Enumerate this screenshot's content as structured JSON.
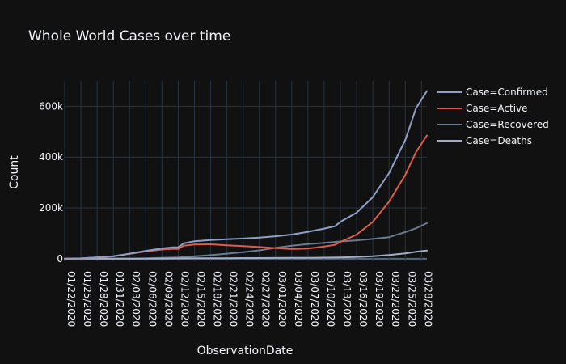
{
  "chart_data": {
    "type": "line",
    "title": "Whole World Cases over time",
    "xlabel": "ObservationDate",
    "ylabel": "Count",
    "ylim": [
      -10000,
      700000
    ],
    "xlim": [
      "01/22/2020",
      "03/29/2020"
    ],
    "grid": true,
    "legend_position": "top-right",
    "legend_group_title": "Case=",
    "y_ticks": [
      {
        "value": 0,
        "label": "0"
      },
      {
        "value": 200000,
        "label": "200k"
      },
      {
        "value": 400000,
        "label": "400k"
      },
      {
        "value": 600000,
        "label": "600k"
      }
    ],
    "x_ticks": [
      "01/22/2020",
      "01/25/2020",
      "01/28/2020",
      "01/31/2020",
      "02/03/2020",
      "02/06/2020",
      "02/09/2020",
      "02/12/2020",
      "02/15/2020",
      "02/18/2020",
      "02/21/2020",
      "02/24/2020",
      "02/27/2020",
      "03/01/2020",
      "03/04/2020",
      "03/07/2020",
      "03/10/2020",
      "03/13/2020",
      "03/16/2020",
      "03/19/2020",
      "03/22/2020",
      "03/25/2020",
      "03/28/2020"
    ],
    "series": [
      {
        "name": "Case=Confirmed",
        "color": "#8ea0c8",
        "points": [
          [
            "01/22/2020",
            555
          ],
          [
            "01/25/2020",
            1400
          ],
          [
            "01/28/2020",
            5600
          ],
          [
            "01/31/2020",
            9900
          ],
          [
            "02/03/2020",
            20000
          ],
          [
            "02/06/2020",
            31000
          ],
          [
            "02/09/2020",
            40500
          ],
          [
            "02/11/2020",
            45000
          ],
          [
            "02/12/2020",
            45200
          ],
          [
            "02/13/2020",
            60400
          ],
          [
            "02/15/2020",
            69000
          ],
          [
            "02/18/2020",
            73300
          ],
          [
            "02/21/2020",
            76800
          ],
          [
            "02/24/2020",
            79600
          ],
          [
            "02/27/2020",
            83000
          ],
          [
            "03/01/2020",
            88400
          ],
          [
            "03/04/2020",
            95100
          ],
          [
            "03/07/2020",
            105800
          ],
          [
            "03/10/2020",
            118600
          ],
          [
            "03/12/2020",
            128300
          ],
          [
            "03/13/2020",
            145200
          ],
          [
            "03/16/2020",
            181500
          ],
          [
            "03/19/2020",
            242700
          ],
          [
            "03/22/2020",
            337000
          ],
          [
            "03/25/2020",
            467600
          ],
          [
            "03/27/2020",
            593000
          ],
          [
            "03/29/2020",
            660000
          ]
        ]
      },
      {
        "name": "Case=Active",
        "color": "#e05b4b",
        "points": [
          [
            "01/22/2020",
            500
          ],
          [
            "01/25/2020",
            1300
          ],
          [
            "01/28/2020",
            5400
          ],
          [
            "01/31/2020",
            9300
          ],
          [
            "02/03/2020",
            19100
          ],
          [
            "02/06/2020",
            28800
          ],
          [
            "02/09/2020",
            36300
          ],
          [
            "02/11/2020",
            39000
          ],
          [
            "02/12/2020",
            38500
          ],
          [
            "02/13/2020",
            51000
          ],
          [
            "02/15/2020",
            56000
          ],
          [
            "02/18/2020",
            57000
          ],
          [
            "02/21/2020",
            53000
          ],
          [
            "02/24/2020",
            50000
          ],
          [
            "02/27/2020",
            46000
          ],
          [
            "03/01/2020",
            42000
          ],
          [
            "03/04/2020",
            38000
          ],
          [
            "03/07/2020",
            40000
          ],
          [
            "03/10/2020",
            48000
          ],
          [
            "03/12/2020",
            55000
          ],
          [
            "03/13/2020",
            66000
          ],
          [
            "03/16/2020",
            95000
          ],
          [
            "03/19/2020",
            145000
          ],
          [
            "03/22/2020",
            225000
          ],
          [
            "03/25/2020",
            330000
          ],
          [
            "03/27/2020",
            420000
          ],
          [
            "03/29/2020",
            485000
          ]
        ]
      },
      {
        "name": "Case=Recovered",
        "color": "#6a7b92",
        "points": [
          [
            "01/22/2020",
            30
          ],
          [
            "01/25/2020",
            40
          ],
          [
            "01/28/2020",
            110
          ],
          [
            "01/31/2020",
            220
          ],
          [
            "02/03/2020",
            620
          ],
          [
            "02/06/2020",
            1500
          ],
          [
            "02/09/2020",
            3300
          ],
          [
            "02/12/2020",
            5200
          ],
          [
            "02/15/2020",
            9400
          ],
          [
            "02/18/2020",
            14300
          ],
          [
            "02/21/2020",
            20000
          ],
          [
            "02/24/2020",
            26000
          ],
          [
            "02/27/2020",
            33000
          ],
          [
            "03/01/2020",
            43000
          ],
          [
            "03/04/2020",
            51000
          ],
          [
            "03/07/2020",
            57600
          ],
          [
            "03/10/2020",
            62500
          ],
          [
            "03/13/2020",
            68000
          ],
          [
            "03/16/2020",
            72600
          ],
          [
            "03/19/2020",
            78000
          ],
          [
            "03/22/2020",
            85000
          ],
          [
            "03/25/2020",
            105000
          ],
          [
            "03/27/2020",
            120000
          ],
          [
            "03/29/2020",
            140000
          ]
        ]
      },
      {
        "name": "Case=Deaths",
        "color": "#a3aec8",
        "points": [
          [
            "01/22/2020",
            17
          ],
          [
            "01/25/2020",
            56
          ],
          [
            "01/28/2020",
            132
          ],
          [
            "01/31/2020",
            213
          ],
          [
            "02/03/2020",
            425
          ],
          [
            "02/06/2020",
            636
          ],
          [
            "02/09/2020",
            908
          ],
          [
            "02/12/2020",
            1120
          ],
          [
            "02/15/2020",
            1666
          ],
          [
            "02/18/2020",
            2004
          ],
          [
            "02/21/2020",
            2250
          ],
          [
            "02/24/2020",
            2700
          ],
          [
            "02/27/2020",
            2800
          ],
          [
            "03/01/2020",
            3000
          ],
          [
            "03/04/2020",
            3250
          ],
          [
            "03/07/2020",
            3550
          ],
          [
            "03/10/2020",
            4260
          ],
          [
            "03/13/2020",
            5400
          ],
          [
            "03/16/2020",
            7100
          ],
          [
            "03/19/2020",
            9900
          ],
          [
            "03/22/2020",
            14600
          ],
          [
            "03/25/2020",
            21200
          ],
          [
            "03/27/2020",
            27300
          ],
          [
            "03/29/2020",
            32000
          ]
        ]
      }
    ]
  }
}
